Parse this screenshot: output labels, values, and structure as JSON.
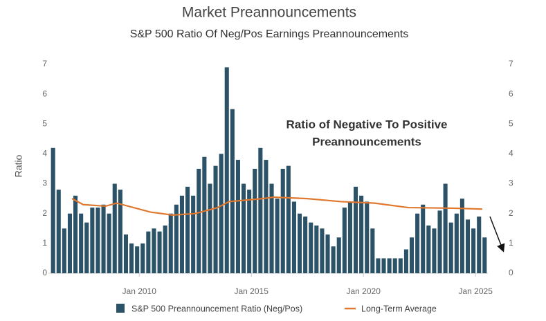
{
  "chart_data": {
    "type": "bar",
    "title": "Market Preannouncements",
    "subtitle": "S&P 500 Ratio Of Neg/Pos Earnings Preannouncements",
    "y_label": "Ratio",
    "annotation": [
      "Ratio of Negative To Positive",
      "Preannouncements"
    ],
    "x": [
      2006.0,
      2006.25,
      2006.5,
      2006.75,
      2007.0,
      2007.25,
      2007.5,
      2007.75,
      2008.0,
      2008.25,
      2008.5,
      2008.75,
      2009.0,
      2009.25,
      2009.5,
      2009.75,
      2010.0,
      2010.25,
      2010.5,
      2010.75,
      2011.0,
      2011.25,
      2011.5,
      2011.75,
      2012.0,
      2012.25,
      2012.5,
      2012.75,
      2013.0,
      2013.25,
      2013.5,
      2013.75,
      2014.0,
      2014.25,
      2014.5,
      2014.75,
      2015.0,
      2015.25,
      2015.5,
      2015.75,
      2016.0,
      2016.25,
      2016.5,
      2016.75,
      2017.0,
      2017.25,
      2017.5,
      2017.75,
      2018.0,
      2018.25,
      2018.5,
      2018.75,
      2019.0,
      2019.25,
      2019.5,
      2019.75,
      2020.0,
      2020.25,
      2020.5,
      2020.75,
      2021.0,
      2021.25,
      2021.5,
      2021.75,
      2022.0,
      2022.25,
      2022.5,
      2022.75,
      2023.0,
      2023.25,
      2023.5,
      2023.75,
      2024.0,
      2024.25,
      2024.5,
      2024.75,
      2025.0,
      2025.25
    ],
    "series": [
      {
        "name": "S&P 500 Preannouncement Ratio (Neg/Pos)",
        "color": "#2b5266",
        "values": [
          4.2,
          2.8,
          1.5,
          2.0,
          2.6,
          2.0,
          1.7,
          2.2,
          2.2,
          2.3,
          2.0,
          3.0,
          2.8,
          1.3,
          1.0,
          0.9,
          1.0,
          1.4,
          1.5,
          1.4,
          1.6,
          2.0,
          2.3,
          2.6,
          2.9,
          2.6,
          3.5,
          3.9,
          3.0,
          3.6,
          4.0,
          6.9,
          5.5,
          3.8,
          3.0,
          2.8,
          3.5,
          4.2,
          3.8,
          3.0,
          2.5,
          3.5,
          3.6,
          2.4,
          2.0,
          1.9,
          1.7,
          1.6,
          1.5,
          1.3,
          0.9,
          1.2,
          2.2,
          2.4,
          2.9,
          2.6,
          2.4,
          1.5,
          0.5,
          0.5,
          0.5,
          0.5,
          0.5,
          0.8,
          1.2,
          2.0,
          2.3,
          1.6,
          1.5,
          2.1,
          3.0,
          1.7,
          2.0,
          2.5,
          1.8,
          1.5,
          1.9,
          1.2
        ]
      },
      {
        "name": "Long-Term Average",
        "color": "#e0782f",
        "type": "line",
        "x": [
          2007.0,
          2007.5,
          2008.5,
          2009.0,
          2010.5,
          2011.5,
          2012.5,
          2013.5,
          2014.0,
          2015.5,
          2016.0,
          2017.5,
          2019.0,
          2020.5,
          2022.0,
          2024.0,
          2025.3
        ],
        "values": [
          2.5,
          2.3,
          2.25,
          2.35,
          2.05,
          1.95,
          2.0,
          2.2,
          2.4,
          2.5,
          2.55,
          2.5,
          2.4,
          2.35,
          2.2,
          2.18,
          2.15
        ]
      }
    ],
    "xlim": [
      2005.95,
      2025.55
    ],
    "xticks": [
      {
        "value": 2010,
        "label": "Jan 2010"
      },
      {
        "value": 2015,
        "label": "Jan 2015"
      },
      {
        "value": 2020,
        "label": "Jan 2020"
      },
      {
        "value": 2025,
        "label": "Jan 2025"
      }
    ],
    "ylim": [
      0,
      7
    ],
    "yticks": [
      0,
      1,
      2,
      3,
      4,
      5,
      6,
      7
    ],
    "y2lim": [
      0,
      7
    ],
    "y2ticks": [
      0,
      1,
      2,
      3,
      4,
      5,
      6,
      7
    ],
    "grid": false
  }
}
